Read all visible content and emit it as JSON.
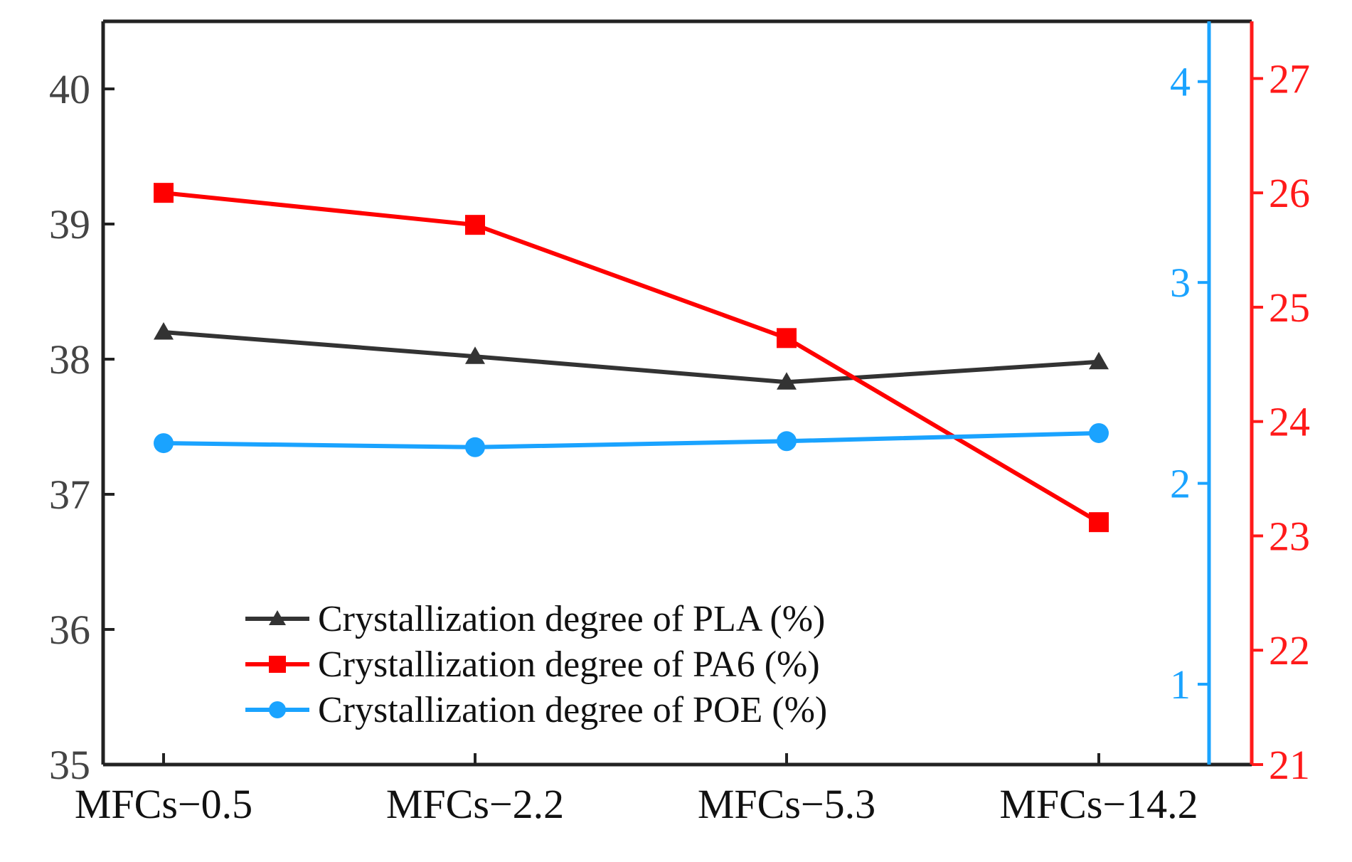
{
  "chart_data": {
    "type": "line",
    "title": "",
    "xlabel": "",
    "categories": [
      "MFCs−0.5",
      "MFCs−2.2",
      "MFCs−5.3",
      "MFCs−14.2"
    ],
    "axes": {
      "left": {
        "label": "",
        "ylim": [
          35,
          40.5
        ],
        "ticks": [
          "35",
          "36",
          "37",
          "38",
          "39",
          "40"
        ],
        "color": "#333333"
      },
      "right_blue": {
        "label": "",
        "ylim": [
          0.6,
          4.3
        ],
        "ticks": [
          "1",
          "2",
          "3",
          "4"
        ],
        "color": "#1aa3ff"
      },
      "right_red": {
        "label": "",
        "ylim": [
          21,
          27.5
        ],
        "ticks": [
          "21",
          "22",
          "23",
          "24",
          "25",
          "26",
          "27"
        ],
        "color": "#ff1a1a"
      }
    },
    "series": [
      {
        "name": "Crystallization degree of PLA (%)",
        "axis": "left",
        "marker": "triangle",
        "color": "#333333",
        "values": [
          38.2,
          38.02,
          37.83,
          37.98
        ]
      },
      {
        "name": "Crystallization degree of PA6 (%)",
        "axis": "right_red",
        "marker": "square",
        "color": "#ff0000",
        "values": [
          26.0,
          25.72,
          24.73,
          23.12
        ]
      },
      {
        "name": "Crystallization degree of POE (%)",
        "axis": "right_blue",
        "marker": "circle",
        "color": "#1aa3ff",
        "values": [
          2.2,
          2.18,
          2.21,
          2.25
        ]
      }
    ],
    "legend_position": "bottom-center"
  }
}
